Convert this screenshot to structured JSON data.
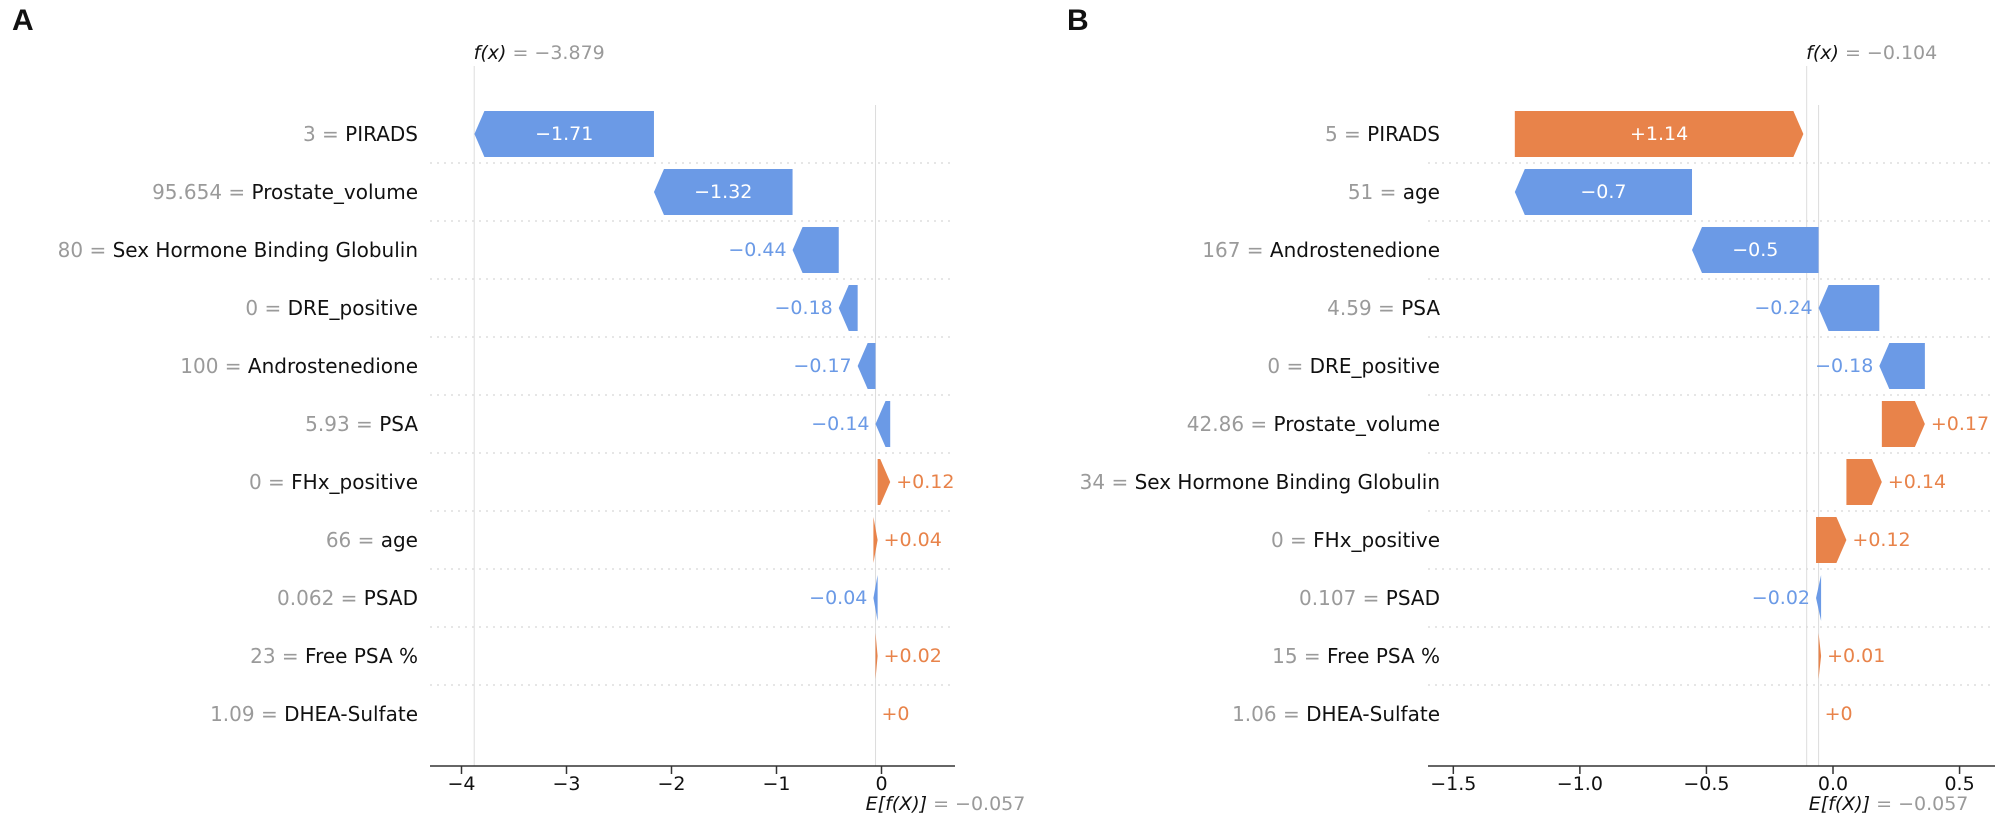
{
  "panels": [
    {
      "letter": "A",
      "fx_label": "f(x) = −3.879",
      "efx_label": "E[f(X)] = −0.057",
      "xlim": [
        -4.3,
        0.7
      ],
      "xticks": [
        -4,
        -3,
        -2,
        -1,
        0
      ],
      "xtick_labels": [
        "−4",
        "−3",
        "−2",
        "−1",
        "0"
      ]
    },
    {
      "letter": "B",
      "fx_label": "f(x) = −0.104",
      "efx_label": "E[f(X)] = −0.057",
      "xlim": [
        -1.6,
        0.64
      ],
      "xticks": [
        -1.5,
        -1.0,
        -0.5,
        0.0,
        0.5
      ],
      "xtick_labels": [
        "−1.5",
        "−1.0",
        "−0.5",
        "0.0",
        "0.5"
      ]
    }
  ],
  "chart_data": [
    {
      "type": "waterfall",
      "panel": "A",
      "base_value": -0.057,
      "output_value": -3.879,
      "colors": {
        "positive": "#e8834a",
        "negative": "#6b9ae6",
        "value_text": "#9a9a9a",
        "feature_text": "#111111"
      },
      "features": [
        {
          "value": "3",
          "name": "PIRADS",
          "shap": -1.71,
          "label": "−1.71"
        },
        {
          "value": "95.654",
          "name": "Prostate_volume",
          "shap": -1.32,
          "label": "−1.32"
        },
        {
          "value": "80",
          "name": "Sex Hormone Binding Globulin",
          "shap": -0.44,
          "label": "−0.44"
        },
        {
          "value": "0",
          "name": "DRE_positive",
          "shap": -0.18,
          "label": "−0.18"
        },
        {
          "value": "100",
          "name": "Androstenedione",
          "shap": -0.17,
          "label": "−0.17"
        },
        {
          "value": "5.93",
          "name": "PSA",
          "shap": -0.14,
          "label": "−0.14"
        },
        {
          "value": "0",
          "name": "FHx_positive",
          "shap": 0.12,
          "label": "+0.12"
        },
        {
          "value": "66",
          "name": "age",
          "shap": 0.04,
          "label": "+0.04"
        },
        {
          "value": "0.062",
          "name": "PSAD",
          "shap": -0.04,
          "label": "−0.04"
        },
        {
          "value": "23",
          "name": "Free PSA %",
          "shap": 0.02,
          "label": "+0.02"
        },
        {
          "value": "1.09",
          "name": "DHEA-Sulfate",
          "shap": 0.0,
          "label": "+0"
        }
      ]
    },
    {
      "type": "waterfall",
      "panel": "B",
      "base_value": -0.057,
      "output_value": -0.104,
      "colors": {
        "positive": "#e8834a",
        "negative": "#6b9ae6",
        "value_text": "#9a9a9a",
        "feature_text": "#111111"
      },
      "features": [
        {
          "value": "5",
          "name": "PIRADS",
          "shap": 1.14,
          "label": "+1.14"
        },
        {
          "value": "51",
          "name": "age",
          "shap": -0.7,
          "label": "−0.7"
        },
        {
          "value": "167",
          "name": "Androstenedione",
          "shap": -0.5,
          "label": "−0.5"
        },
        {
          "value": "4.59",
          "name": "PSA",
          "shap": -0.24,
          "label": "−0.24"
        },
        {
          "value": "0",
          "name": "DRE_positive",
          "shap": -0.18,
          "label": "−0.18"
        },
        {
          "value": "42.86",
          "name": "Prostate_volume",
          "shap": 0.17,
          "label": "+0.17"
        },
        {
          "value": "34",
          "name": "Sex Hormone Binding Globulin",
          "shap": 0.14,
          "label": "+0.14"
        },
        {
          "value": "0",
          "name": "FHx_positive",
          "shap": 0.12,
          "label": "+0.12"
        },
        {
          "value": "0.107",
          "name": "PSAD",
          "shap": -0.02,
          "label": "−0.02"
        },
        {
          "value": "15",
          "name": "Free PSA %",
          "shap": 0.01,
          "label": "+0.01"
        },
        {
          "value": "1.06",
          "name": "DHEA-Sulfate",
          "shap": 0.0,
          "label": "+0"
        }
      ]
    }
  ]
}
